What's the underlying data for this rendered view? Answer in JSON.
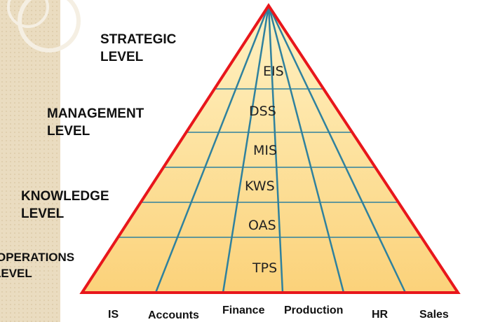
{
  "levels": [
    [
      "STRATEGIC",
      "LEVEL"
    ],
    [
      "MANAGEMENT",
      "LEVEL"
    ],
    [
      "KNOWLEDGE",
      "LEVEL"
    ],
    [
      "OPERATIONS",
      "LEVEL"
    ]
  ],
  "systems": [
    "EIS",
    "DSS",
    "MIS",
    "KWS",
    "OAS",
    "TPS"
  ],
  "departments": [
    "IS",
    "Accounts",
    "Finance",
    "Production",
    "HR",
    "Sales"
  ]
}
